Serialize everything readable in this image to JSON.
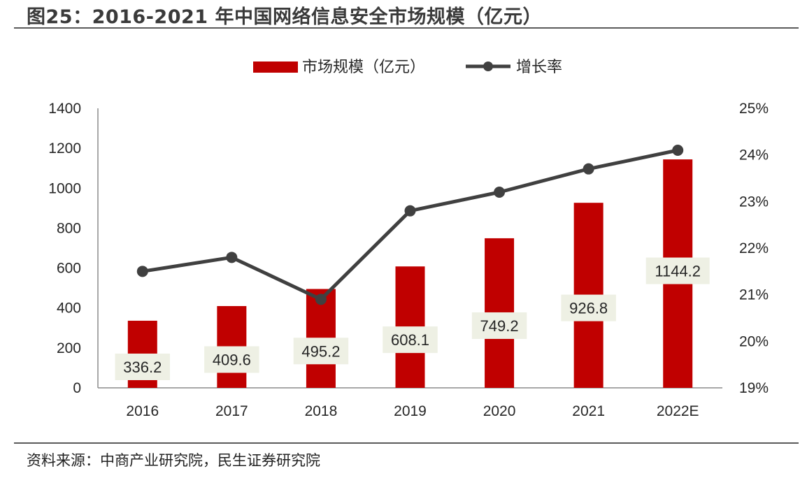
{
  "figure": {
    "title": "图25：2016-2021 年中国网络信息安全市场规模（亿元）",
    "source": "资料来源：中商产业研究院，民生证券研究院"
  },
  "colors": {
    "bar": "#C00000",
    "line": "#404040",
    "label_bg": "#EEF0E4",
    "rule": "#5a5a5a"
  },
  "chart_data": {
    "type": "bar",
    "categories": [
      "2016",
      "2017",
      "2018",
      "2019",
      "2020",
      "2021",
      "2022E"
    ],
    "series": [
      {
        "name": "市场规模（亿元）",
        "type": "bar",
        "axis": "left",
        "values": [
          336.2,
          409.6,
          495.2,
          608.1,
          749.2,
          926.8,
          1144.2
        ],
        "labels": [
          "336.2",
          "409.6",
          "495.2",
          "608.1",
          "749.2",
          "926.8",
          "1144.2"
        ]
      },
      {
        "name": "增长率",
        "type": "line",
        "axis": "right",
        "values": [
          21.5,
          21.8,
          20.9,
          22.8,
          23.2,
          23.7,
          24.1
        ]
      }
    ],
    "y_left": {
      "ylim": [
        0,
        1400
      ],
      "ticks": [
        "0",
        "200",
        "400",
        "600",
        "800",
        "1000",
        "1200",
        "1400"
      ]
    },
    "y_right": {
      "ylim": [
        19,
        25
      ],
      "ticks": [
        "19%",
        "20%",
        "21%",
        "22%",
        "23%",
        "24%",
        "25%"
      ]
    },
    "legend_position": "top-center",
    "grid": false
  }
}
